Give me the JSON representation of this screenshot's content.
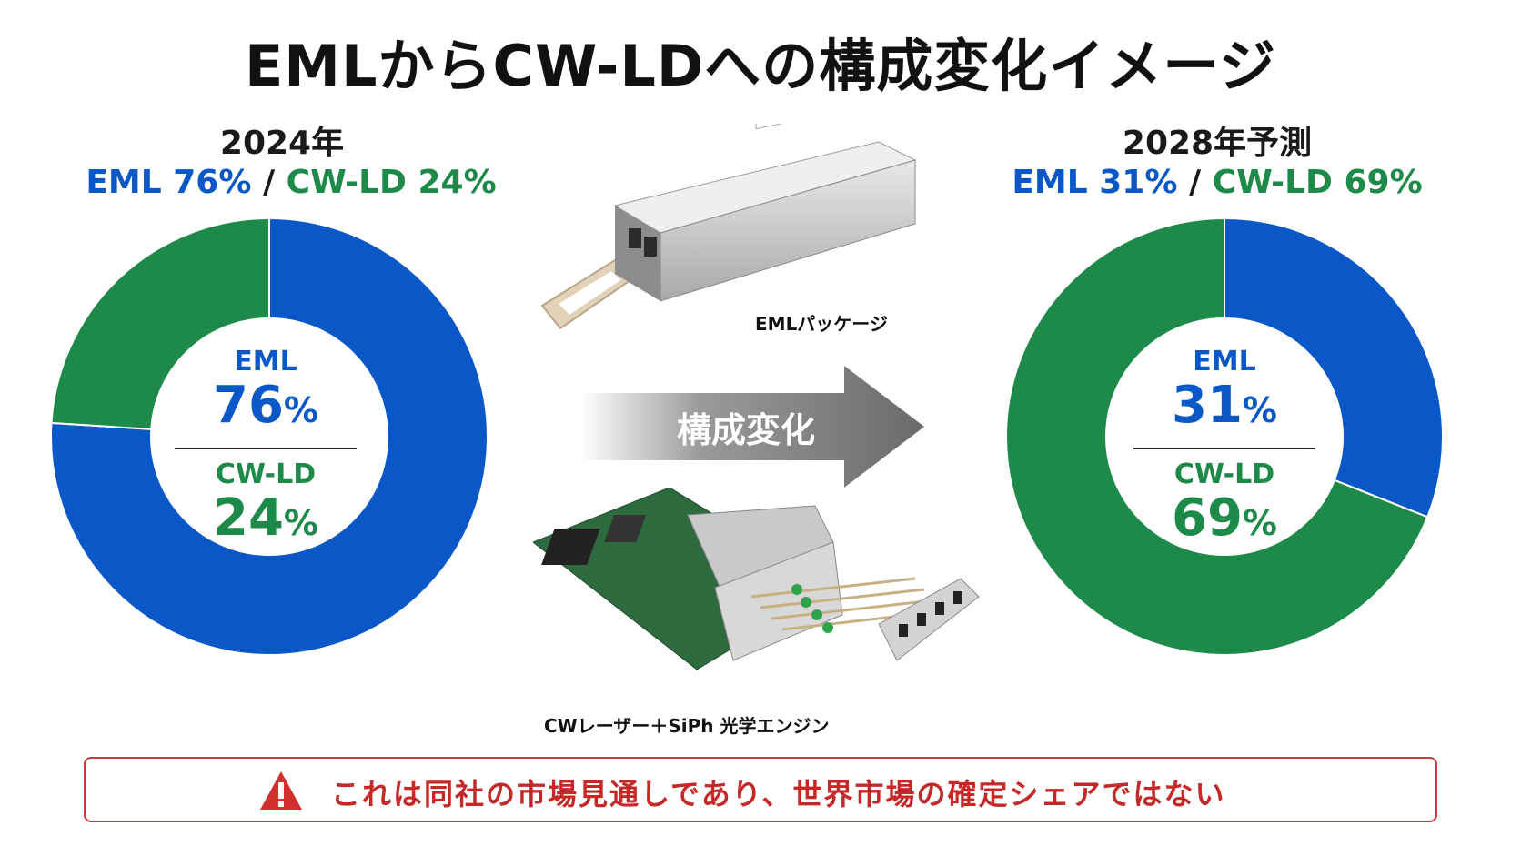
{
  "title": "EMLからCW-LDへの構成変化イメージ",
  "colors": {
    "eml": "#0a57c8",
    "cw_ld": "#1e8a4a",
    "warning": "#c62828"
  },
  "left": {
    "year_label": "2024年",
    "share_eml": "EML 76%",
    "share_sep": "/",
    "share_cw": "CW-LD 24%",
    "center": {
      "eml_name": "EML",
      "eml_val": "76",
      "cw_name": "CW-LD",
      "cw_val": "24",
      "unit": "%"
    }
  },
  "right": {
    "year_label": "2028年予測",
    "share_eml": "EML 31%",
    "share_sep": "/",
    "share_cw": "CW-LD 69%",
    "center": {
      "eml_name": "EML",
      "eml_val": "31",
      "cw_name": "CW-LD",
      "cw_val": "69",
      "unit": "%"
    }
  },
  "arrow_label": "構成変化",
  "images": {
    "top_caption": "EMLパッケージ",
    "top_icon": "transceiver-module-photo",
    "bottom_caption": "CWレーザー＋SiPh 光学エンジン",
    "bottom_icon": "optical-engine-board-photo"
  },
  "notice": {
    "icon": "warning-icon",
    "text": "これは同社の市場見通しであり、世界市場の確定シェアではない"
  },
  "chart_data": [
    {
      "type": "pie",
      "title": "2024年",
      "categories": [
        "EML",
        "CW-LD"
      ],
      "values": [
        76,
        24
      ],
      "unit": "%"
    },
    {
      "type": "pie",
      "title": "2028年予測",
      "categories": [
        "EML",
        "CW-LD"
      ],
      "values": [
        31,
        69
      ],
      "unit": "%"
    }
  ]
}
